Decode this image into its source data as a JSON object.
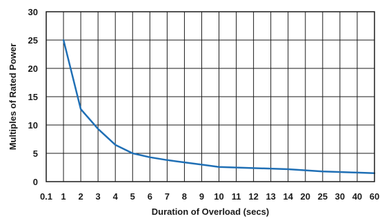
{
  "chart_data": {
    "type": "line",
    "title": "",
    "xlabel": "Duration of Overload (secs)",
    "ylabel": "Multiples of Rated Power",
    "x_categories": [
      "0.1",
      "1",
      "2",
      "3",
      "4",
      "5",
      "6",
      "7",
      "8",
      "9",
      "10",
      "11",
      "12",
      "13",
      "14",
      "20",
      "25",
      "30",
      "40",
      "60"
    ],
    "ylim": [
      0,
      30
    ],
    "y_ticks": [
      0,
      5,
      10,
      15,
      20,
      25,
      30
    ],
    "grid": true,
    "series": [
      {
        "color": "#1f6fb5",
        "points": [
          {
            "x": "1",
            "y": 25
          },
          {
            "x": "2",
            "y": 12.8
          },
          {
            "x": "3",
            "y": 9.3
          },
          {
            "x": "4",
            "y": 6.5
          },
          {
            "x": "5",
            "y": 5.0
          },
          {
            "x": "6",
            "y": 4.3
          },
          {
            "x": "7",
            "y": 3.8
          },
          {
            "x": "8",
            "y": 3.4
          },
          {
            "x": "9",
            "y": 3.0
          },
          {
            "x": "10",
            "y": 2.6
          },
          {
            "x": "14",
            "y": 2.2
          },
          {
            "x": "20",
            "y": 2.0
          },
          {
            "x": "25",
            "y": 1.8
          },
          {
            "x": "40",
            "y": 1.6
          },
          {
            "x": "60",
            "y": 1.5
          }
        ]
      }
    ]
  }
}
